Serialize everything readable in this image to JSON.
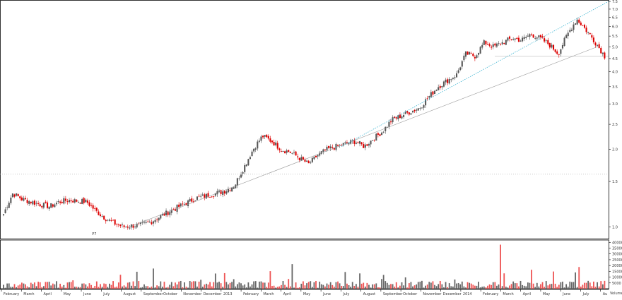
{
  "colors": {
    "up": "#555555",
    "down": "#dd0000",
    "trendline": "#999999",
    "channel": "#22aacc",
    "support": "#bbbbbb",
    "frame": "#000000",
    "ref_dotted": "#aaaaaa"
  },
  "annotation": "P7",
  "chart_data": [
    {
      "type": "candlestick",
      "title": "",
      "scale": "log",
      "grid": false,
      "ylim": [
        0.9,
        7.5
      ],
      "y_ticks": [
        1.0,
        1.5,
        2.0,
        2.5,
        3.0,
        3.5,
        4.0,
        4.5,
        5.0,
        5.5,
        6.0,
        6.5,
        7.0,
        7.5
      ],
      "x_ticks": [
        "February",
        "March",
        "April",
        "May",
        "June",
        "July",
        "August",
        "September",
        "October",
        "November",
        "December",
        "2013",
        "February",
        "March",
        "April",
        "May",
        "June",
        "July",
        "August",
        "September",
        "October",
        "November",
        "December",
        "2014",
        "February",
        "March",
        "April",
        "May",
        "June",
        "July",
        "Au"
      ],
      "price_path": [
        1.12,
        1.35,
        1.28,
        1.25,
        1.22,
        1.2,
        1.25,
        1.27,
        1.26,
        1.25,
        1.15,
        1.08,
        1.03,
        1.0,
        1.01,
        1.02,
        1.05,
        1.1,
        1.15,
        1.2,
        1.25,
        1.3,
        1.32,
        1.35,
        1.38,
        1.45,
        1.7,
        2.0,
        2.25,
        2.15,
        2.0,
        1.95,
        1.85,
        1.75,
        1.9,
        2.0,
        2.05,
        2.1,
        2.15,
        2.05,
        2.2,
        2.35,
        2.6,
        2.7,
        2.8,
        2.9,
        3.2,
        3.5,
        3.7,
        3.9,
        4.7,
        4.6,
        5.2,
        5.0,
        5.2,
        5.4,
        5.3,
        5.6,
        5.4,
        5.1,
        4.7,
        5.6,
        6.4,
        5.8,
        5.2,
        4.6
      ],
      "reference_levels": [
        1.6,
        4.6
      ]
    },
    {
      "type": "bar",
      "title": "Volume",
      "y_ticks": [
        5000,
        10000,
        15000,
        20000,
        25000,
        30000,
        35000,
        40000
      ],
      "ylim": [
        0,
        42000
      ]
    }
  ]
}
